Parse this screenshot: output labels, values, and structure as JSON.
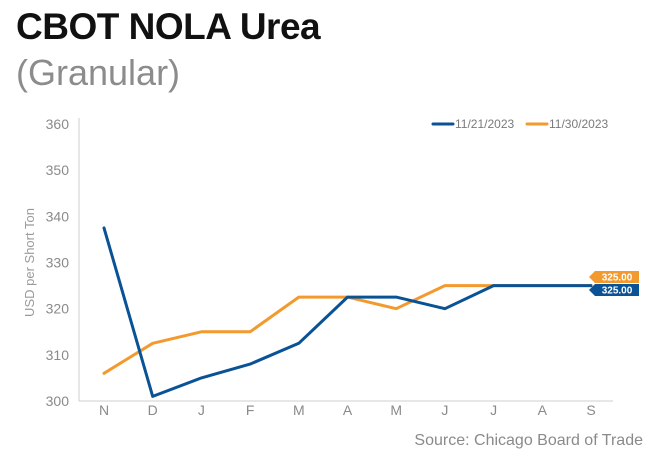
{
  "title": "CBOT NOLA Urea",
  "subtitle": "(Granular)",
  "source": "Source: Chicago Board of Trade",
  "colors": {
    "series_1": "#0a5296",
    "series_2": "#f29a2e",
    "axis": "#cfcfcf",
    "text": "#8a8a8a"
  },
  "chart_data": {
    "type": "line",
    "title": "CBOT NOLA Urea",
    "subtitle": "(Granular)",
    "xlabel": "",
    "ylabel": "USD per Short Ton",
    "categories": [
      "N",
      "D",
      "J",
      "F",
      "M",
      "A",
      "M",
      "J",
      "J",
      "A",
      "S"
    ],
    "ylim": [
      300,
      360
    ],
    "yticks": [
      300,
      310,
      320,
      330,
      340,
      350,
      360
    ],
    "grid": false,
    "legend_position": "top-right",
    "series": [
      {
        "name": "11/21/2023",
        "color": "#0a5296",
        "values": [
          337.5,
          301,
          305,
          308,
          312.5,
          322.5,
          322.5,
          320,
          325,
          325,
          325
        ],
        "end_label": "325.00"
      },
      {
        "name": "11/30/2023",
        "color": "#f29a2e",
        "values": [
          306,
          312.5,
          315,
          315,
          322.5,
          322.5,
          320,
          325,
          325,
          325,
          325
        ],
        "end_label": "325.00"
      }
    ]
  }
}
